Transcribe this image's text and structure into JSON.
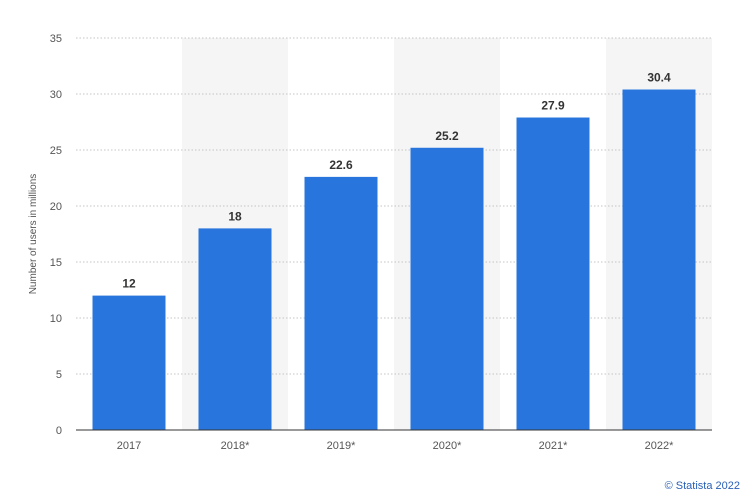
{
  "chart_data": {
    "type": "bar",
    "categories": [
      "2017",
      "2018*",
      "2019*",
      "2020*",
      "2021*",
      "2022*"
    ],
    "values": [
      12,
      18,
      22.6,
      25.2,
      27.9,
      30.4
    ],
    "value_labels": [
      "12",
      "18",
      "22.6",
      "25.2",
      "27.9",
      "30.4"
    ],
    "ylabel": "Number of users in millions",
    "ylim": [
      0,
      35
    ],
    "yticks": [
      0,
      5,
      10,
      15,
      20,
      25,
      30,
      35
    ],
    "grid": true,
    "colors": {
      "bar": "#2875dd",
      "band": "#f5f5f5",
      "grid": "#c4c4c4"
    }
  },
  "credit": "© Statista 2022"
}
